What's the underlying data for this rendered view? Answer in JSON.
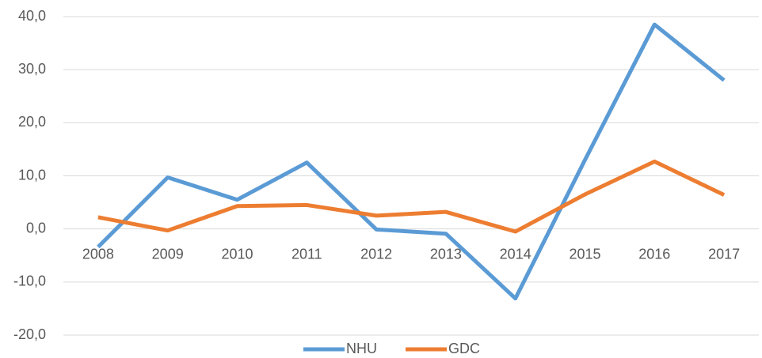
{
  "chart_data": {
    "type": "line",
    "categories": [
      "2008",
      "2009",
      "2010",
      "2011",
      "2012",
      "2013",
      "2014",
      "2015",
      "2016",
      "2017"
    ],
    "series": [
      {
        "name": "NHU",
        "color": "#5b9bd5",
        "values": [
          -3.4,
          9.7,
          5.5,
          12.5,
          -0.1,
          -0.9,
          -13.1,
          13.0,
          38.5,
          28.0
        ]
      },
      {
        "name": "GDC",
        "color": "#ed7d31",
        "values": [
          2.2,
          -0.3,
          4.3,
          4.5,
          2.5,
          3.2,
          -0.5,
          6.5,
          12.7,
          6.4
        ]
      }
    ],
    "ylim": [
      -20,
      40
    ],
    "yticks": [
      {
        "value": -20,
        "label": "-20,0"
      },
      {
        "value": -10,
        "label": "-10,0"
      },
      {
        "value": 0,
        "label": "0,0"
      },
      {
        "value": 10,
        "label": "10,0"
      },
      {
        "value": 20,
        "label": "20,0"
      },
      {
        "value": 30,
        "label": "30,0"
      },
      {
        "value": 40,
        "label": "40,0"
      }
    ],
    "grid": true,
    "legend": "bottom"
  }
}
